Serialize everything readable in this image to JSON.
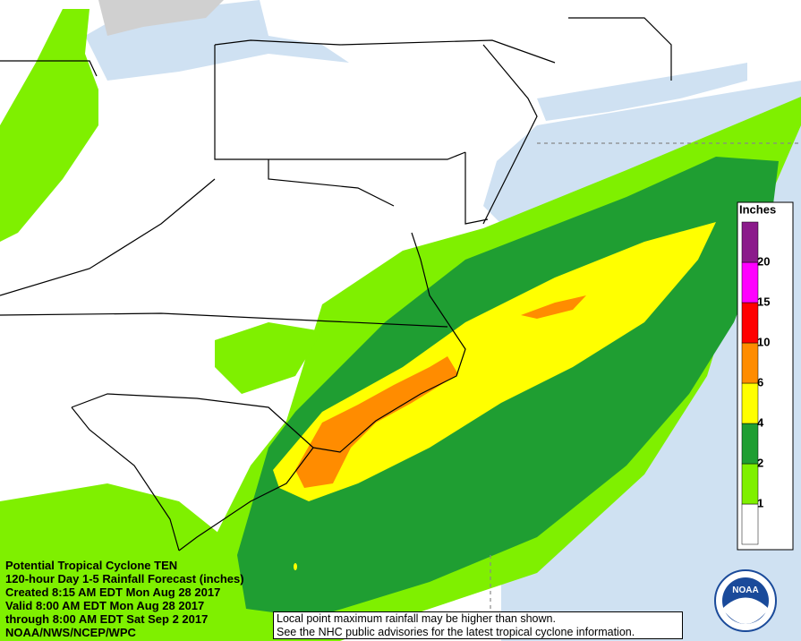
{
  "info_lines": [
    "Potential Tropical Cyclone TEN",
    "120-hour Day 1-5 Rainfall Forecast (inches)",
    "Created 8:15 AM EDT Mon Aug 28 2017",
    "Valid 8:00 AM EDT Mon Aug 28 2017",
    "through 8:00 AM EDT Sat Sep 2 2017",
    "NOAA/NWS/NCEP/WPC"
  ],
  "note_lines": [
    "Local point maximum rainfall may be higher than shown.",
    "See the NHC public advisories for the latest tropical cyclone information."
  ],
  "legend": {
    "title": "Inches",
    "thresholds": [
      1,
      2,
      4,
      6,
      10,
      15,
      20
    ],
    "colors": [
      "#ffffff",
      "#7ff000",
      "#1f9e32",
      "#ffff00",
      "#ff8c00",
      "#ff0000",
      "#ff00ff",
      "#8b1a8b"
    ]
  },
  "logo_text": "NOAA"
}
